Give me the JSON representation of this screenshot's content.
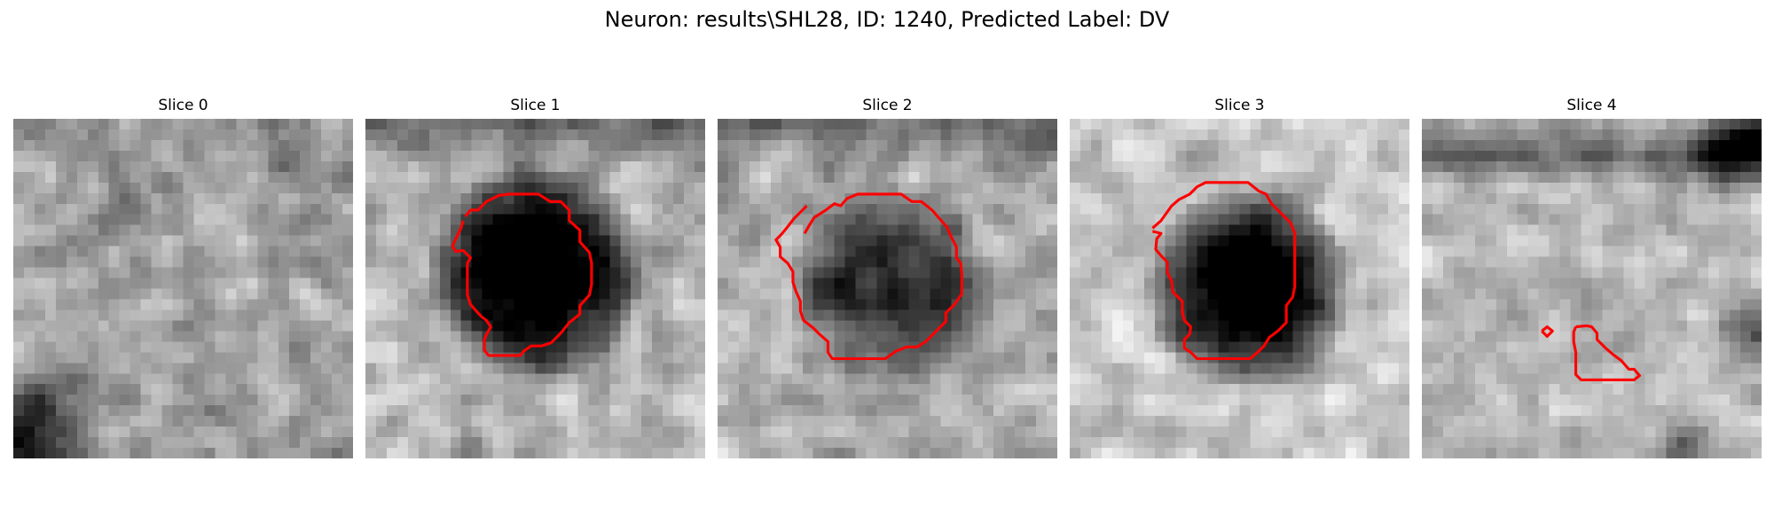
{
  "figure": {
    "title": "Neuron: results\\SHL28, ID: 1240, Predicted Label: DV"
  },
  "panels": [
    {
      "title": "Slice 0",
      "has_contour": false
    },
    {
      "title": "Slice 1",
      "has_contour": true
    },
    {
      "title": "Slice 2",
      "has_contour": true
    },
    {
      "title": "Slice 3",
      "has_contour": true
    },
    {
      "title": "Slice 4",
      "has_contour": true
    }
  ],
  "colors": {
    "contour": "#ff0000",
    "background": "#ffffff"
  },
  "image": {
    "colormap": "gray",
    "grid": "32x32"
  }
}
